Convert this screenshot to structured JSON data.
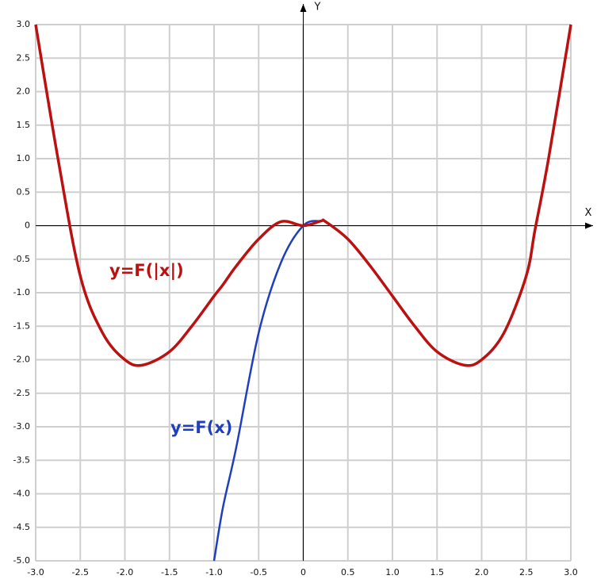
{
  "chart_data": {
    "type": "line",
    "x_axis_label": "X",
    "y_axis_label": "Y",
    "x": [
      -3,
      -2.75,
      -2.5,
      -2.25,
      -2,
      -1.8,
      -1.5,
      -1.25,
      -1,
      -0.9,
      -0.75,
      -0.5,
      -0.25,
      0,
      0.2,
      0.25,
      0.5,
      0.75,
      1,
      1.25,
      1.5,
      1.8,
      2,
      2.25,
      2.5,
      2.6,
      2.75,
      3
    ],
    "series": [
      {
        "name": "y=F(x)",
        "color": "#1f3fbf",
        "values": [
          null,
          null,
          null,
          null,
          null,
          null,
          null,
          null,
          -5.0,
          -4.2,
          -3.3,
          -1.6,
          -0.55,
          0,
          0.07,
          0.06,
          -0.2,
          -0.6,
          -1.05,
          -1.5,
          -1.88,
          -2.08,
          -2.0,
          -1.6,
          -0.75,
          -0.05,
          1.0,
          3.0
        ]
      },
      {
        "name": "y=F(|x|)",
        "color": "#bb1111",
        "values": [
          3.0,
          1.0,
          -0.75,
          -1.6,
          -2.0,
          -2.08,
          -1.88,
          -1.5,
          -1.05,
          -0.88,
          -0.6,
          -0.2,
          0.06,
          0,
          0.07,
          0.06,
          -0.2,
          -0.6,
          -1.05,
          -1.5,
          -1.88,
          -2.08,
          -2.0,
          -1.6,
          -0.75,
          -0.05,
          1.0,
          3.0
        ]
      }
    ],
    "xlim": [
      -3,
      3
    ],
    "ylim": [
      -5,
      3
    ],
    "xticks": [
      {
        "value": -3,
        "label": "-3.0"
      },
      -2.5,
      {
        "value": -2,
        "label": "-2.0"
      },
      -1.5,
      {
        "value": -1,
        "label": "-1.0"
      },
      -0.5,
      0,
      0.5,
      {
        "value": 1,
        "label": "1.0"
      },
      1.5,
      {
        "value": 2,
        "label": "2.0"
      },
      2.5,
      {
        "value": 3,
        "label": "3.0"
      }
    ],
    "yticks": [
      {
        "value": 3,
        "label": "3.0"
      },
      2.5,
      {
        "value": 2,
        "label": "2.0"
      },
      1.5,
      {
        "value": 1,
        "label": "1.0"
      },
      0.5,
      0,
      -0.5,
      {
        "value": -1,
        "label": "-1.0"
      },
      -1.5,
      {
        "value": -2,
        "label": "-2.0"
      },
      -2.5,
      {
        "value": -3,
        "label": "-3.0"
      },
      -3.5,
      {
        "value": -4,
        "label": "-4.0"
      },
      -4.5,
      {
        "value": -5,
        "label": "-5.0"
      }
    ],
    "grid": true
  }
}
